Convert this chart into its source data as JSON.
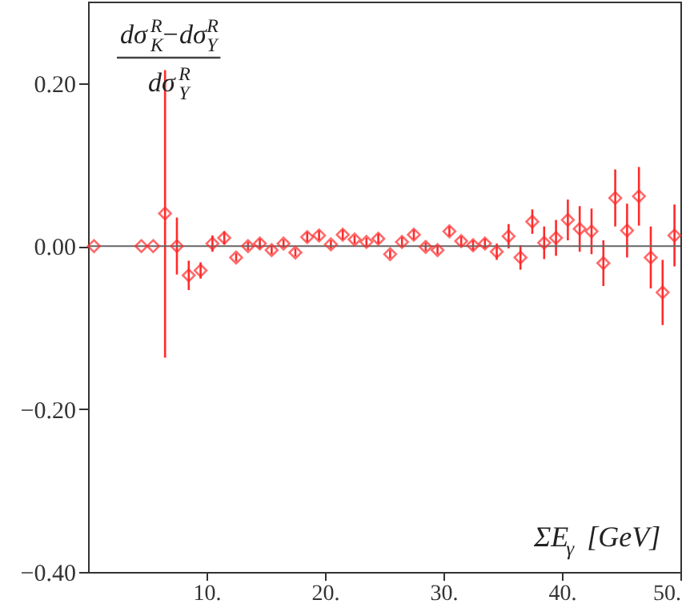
{
  "chart_data": {
    "type": "scatter",
    "ylabel": "dσ$^{R}$$_{K}$−dσ$^{R}$$_{Y}$",
    "annotations": [
      "dσ$^{R}$$_{Y}$"
    ],
    "xlabel": "ΣE$_{γ}$ [GeV]",
    "x": [
      0.5,
      4.5,
      5.5,
      6.5,
      7.5,
      8.5,
      9.5,
      10.5,
      11.5,
      12.5,
      13.5,
      14.5,
      15.5,
      16.5,
      17.5,
      18.5,
      19.5,
      20.5,
      21.5,
      22.5,
      23.5,
      24.5,
      25.5,
      26.5,
      27.5,
      28.5,
      29.5,
      30.5,
      31.5,
      32.5,
      33.5,
      34.5,
      35.5,
      36.5,
      37.5,
      38.5,
      39.5,
      40.5,
      41.5,
      42.5,
      43.5,
      44.5,
      45.5,
      46.5,
      47.5,
      48.5,
      49.5
    ],
    "series": [
      {
        "color": "#ff2a2a",
        "values": [
          0.0,
          0.0,
          0.0,
          0.04,
          0.0,
          -0.036,
          -0.03,
          0.003,
          0.01,
          -0.014,
          0.0,
          0.003,
          -0.005,
          0.003,
          -0.008,
          0.011,
          0.013,
          0.002,
          0.014,
          0.008,
          0.005,
          0.009,
          -0.01,
          0.005,
          0.014,
          -0.001,
          -0.005,
          0.018,
          0.006,
          0.001,
          0.003,
          -0.007,
          0.012,
          -0.014,
          0.03,
          0.004,
          0.01,
          0.032,
          0.021,
          0.018,
          -0.021,
          0.059,
          0.019,
          0.061,
          -0.014,
          -0.057,
          0.013
        ],
        "errors": [
          null,
          null,
          null,
          [
            -0.137,
            0.216
          ],
          0.035,
          0.018,
          0.01,
          0.01,
          0.008,
          0.005,
          0.005,
          0.006,
          0.005,
          0.005,
          0.005,
          0.006,
          0.006,
          0.005,
          0.006,
          0.005,
          0.005,
          0.006,
          0.005,
          0.006,
          0.006,
          0.005,
          0.005,
          0.006,
          0.006,
          0.006,
          0.006,
          0.01,
          0.015,
          0.015,
          0.015,
          0.02,
          0.022,
          0.025,
          0.028,
          0.028,
          0.028,
          0.035,
          0.033,
          0.036,
          0.038,
          0.04,
          0.038
        ]
      }
    ],
    "marker": "diamond",
    "xlim": [
      0,
      50
    ],
    "xticks": [
      {
        "value": 10,
        "label": "10."
      },
      {
        "value": 20,
        "label": "20."
      },
      {
        "value": 30,
        "label": "30."
      },
      {
        "value": 40,
        "label": "40."
      },
      {
        "value": 50,
        "label": "50."
      }
    ],
    "ylim": [
      -0.4,
      0.3
    ],
    "yticks": [
      {
        "value": -0.4,
        "label": "−0.40"
      },
      {
        "value": -0.2,
        "label": "−0.20"
      },
      {
        "value": 0,
        "label": "0.00"
      },
      {
        "value": 0.2,
        "label": "0.20"
      }
    ],
    "ref_lines": [
      {
        "axis": "y",
        "value": 0,
        "color": "#666666"
      }
    ],
    "grid": false
  }
}
